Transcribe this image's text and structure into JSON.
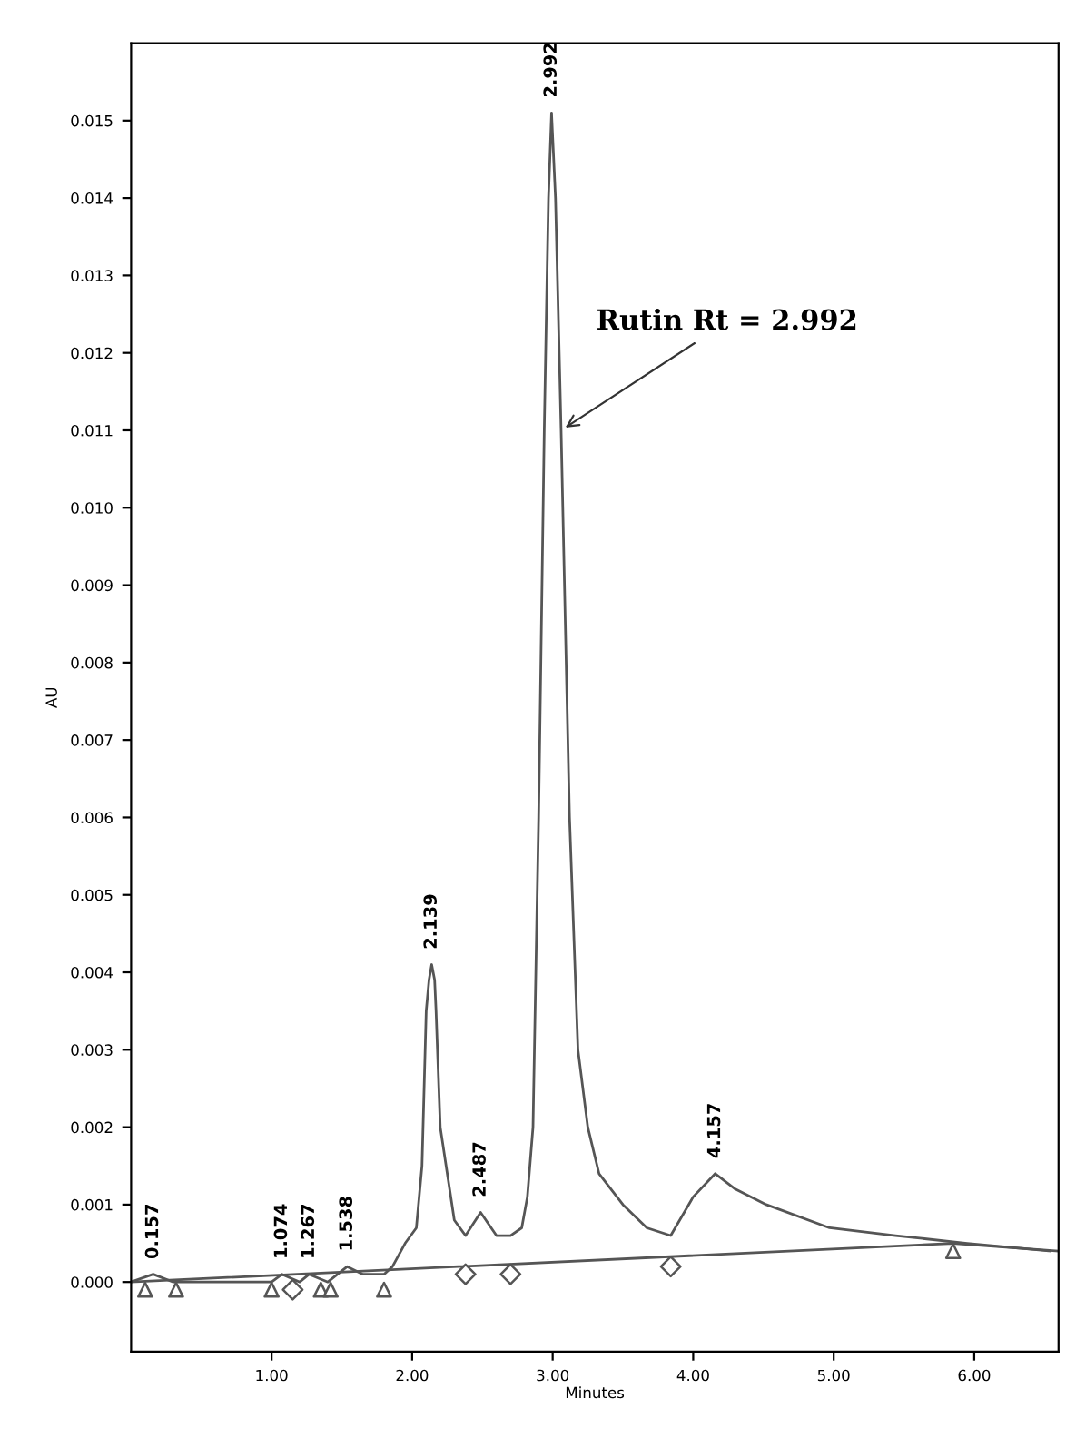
{
  "chart_data": {
    "type": "line",
    "xlabel": "Minutes",
    "ylabel": "AU",
    "xlim": [
      0,
      6.6
    ],
    "ylim": [
      -0.0009,
      0.016
    ],
    "xticks": [
      {
        "value": 1,
        "label": "1.00"
      },
      {
        "value": 2,
        "label": "2.00"
      },
      {
        "value": 3,
        "label": "3.00"
      },
      {
        "value": 4,
        "label": "4.00"
      },
      {
        "value": 5,
        "label": "5.00"
      },
      {
        "value": 6,
        "label": "6.00"
      }
    ],
    "yticks": [
      {
        "value": 0,
        "label": "0.000"
      },
      {
        "value": 0.001,
        "label": "0.001"
      },
      {
        "value": 0.002,
        "label": "0.002"
      },
      {
        "value": 0.003,
        "label": "0.003"
      },
      {
        "value": 0.004,
        "label": "0.004"
      },
      {
        "value": 0.005,
        "label": "0.005"
      },
      {
        "value": 0.006,
        "label": "0.006"
      },
      {
        "value": 0.007,
        "label": "0.007"
      },
      {
        "value": 0.008,
        "label": "0.008"
      },
      {
        "value": 0.009,
        "label": "0.009"
      },
      {
        "value": 0.01,
        "label": "0.010"
      },
      {
        "value": 0.011,
        "label": "0.011"
      },
      {
        "value": 0.012,
        "label": "0.012"
      },
      {
        "value": 0.013,
        "label": "0.013"
      },
      {
        "value": 0.014,
        "label": "0.014"
      },
      {
        "value": 0.015,
        "label": "0.015"
      }
    ],
    "grid": false,
    "series": [
      {
        "type": "line",
        "color": "#555555",
        "x": [
          0,
          0.157,
          0.3,
          1.0,
          1.074,
          1.2,
          1.267,
          1.4,
          1.538,
          1.65,
          1.8,
          1.86,
          1.95,
          2.03,
          2.07,
          2.1,
          2.12,
          2.139,
          2.16,
          2.17,
          2.2,
          2.3,
          2.38,
          2.487,
          2.6,
          2.7,
          2.78,
          2.82,
          2.86,
          2.9,
          2.94,
          2.97,
          2.992,
          3.02,
          3.06,
          3.12,
          3.18,
          3.25,
          3.33,
          3.5,
          3.67,
          3.84,
          4.0,
          4.157,
          4.3,
          4.52,
          4.97,
          5.44,
          5.95,
          6.54
        ],
        "values": [
          0,
          0.0001,
          0,
          0,
          0.0001,
          0,
          0.0001,
          0,
          0.0002,
          0.0001,
          0.0001,
          0.0002,
          0.0005,
          0.0007,
          0.0015,
          0.0035,
          0.0039,
          0.0041,
          0.0039,
          0.0035,
          0.002,
          0.0008,
          0.0006,
          0.0009,
          0.0006,
          0.0006,
          0.0007,
          0.0011,
          0.002,
          0.006,
          0.011,
          0.014,
          0.0151,
          0.014,
          0.011,
          0.006,
          0.003,
          0.002,
          0.0014,
          0.001,
          0.0007,
          0.0006,
          0.0011,
          0.0014,
          0.0012,
          0.001,
          0.0007,
          0.0006,
          0.0005,
          0.0004
        ]
      },
      {
        "type": "line",
        "color": "#555555",
        "x": [
          0,
          5.85,
          6.6
        ],
        "values": [
          0,
          0.0005,
          0.0004
        ]
      },
      {
        "type": "scatter",
        "marker": "triangle",
        "color": "#555555",
        "x": [
          0.1,
          0.32,
          1.0,
          1.35,
          1.42,
          1.8,
          5.85
        ],
        "values": [
          -0.0001,
          -0.0001,
          -0.0001,
          -0.0001,
          -0.0001,
          -0.0001,
          0.0004
        ]
      },
      {
        "type": "scatter",
        "marker": "diamond",
        "color": "#555555",
        "x": [
          1.15,
          2.38,
          2.7,
          3.84
        ],
        "values": [
          -0.0001,
          0.0001,
          0.0001,
          0.0002
        ]
      }
    ],
    "annotations": [
      {
        "text": "0.157",
        "x": 0.157,
        "y": 0.0001
      },
      {
        "text": "1.074",
        "x": 1.074,
        "y": 0.0001
      },
      {
        "text": "1.267",
        "x": 1.267,
        "y": 0.0001
      },
      {
        "text": "1.538",
        "x": 1.538,
        "y": 0.0002
      },
      {
        "text": "2.139",
        "x": 2.139,
        "y": 0.0041
      },
      {
        "text": "2.487",
        "x": 2.487,
        "y": 0.0009
      },
      {
        "text": "2.992",
        "x": 2.992,
        "y": 0.0151
      },
      {
        "text": "4.157",
        "x": 4.157,
        "y": 0.0014
      },
      {
        "text": "Rutin Rt = 2.992",
        "x": 3.06,
        "y": 0.011
      }
    ]
  }
}
